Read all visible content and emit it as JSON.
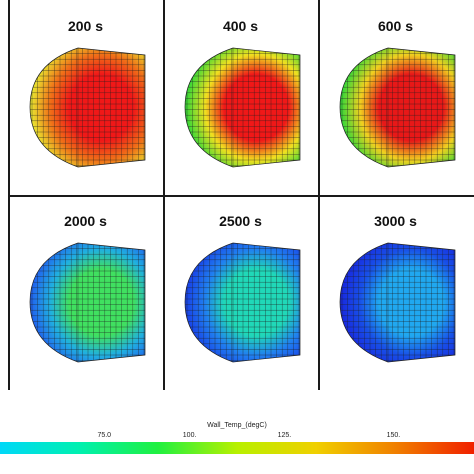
{
  "frames": [
    {
      "label": "200 s",
      "outer": "#e8e830",
      "inner": "#f01818",
      "edge": "#f07018"
    },
    {
      "label": "400 s",
      "outer": "#30d838",
      "inner": "#f01818",
      "edge": "#f0e020"
    },
    {
      "label": "600 s",
      "outer": "#30d838",
      "inner": "#e81818",
      "edge": "#f0d020"
    },
    {
      "label": "2000 s",
      "outer": "#2060f0",
      "inner": "#40e060",
      "edge": "#20b0e0"
    },
    {
      "label": "2500 s",
      "outer": "#1840e8",
      "inner": "#20d8b8",
      "edge": "#2080f0"
    },
    {
      "label": "3000 s",
      "outer": "#1828e0",
      "inner": "#20a8f0",
      "edge": "#1850e8"
    }
  ],
  "colorbar": {
    "title": "Wall_Temp_(degC)",
    "ticks": [
      "75.0",
      "100.",
      "125.",
      "150."
    ],
    "tick_positions": [
      0.22,
      0.4,
      0.6,
      0.83
    ],
    "colors": [
      "#00d8f8",
      "#00f0b0",
      "#20f040",
      "#b8f000",
      "#f0d000",
      "#f08000",
      "#f02000"
    ]
  }
}
